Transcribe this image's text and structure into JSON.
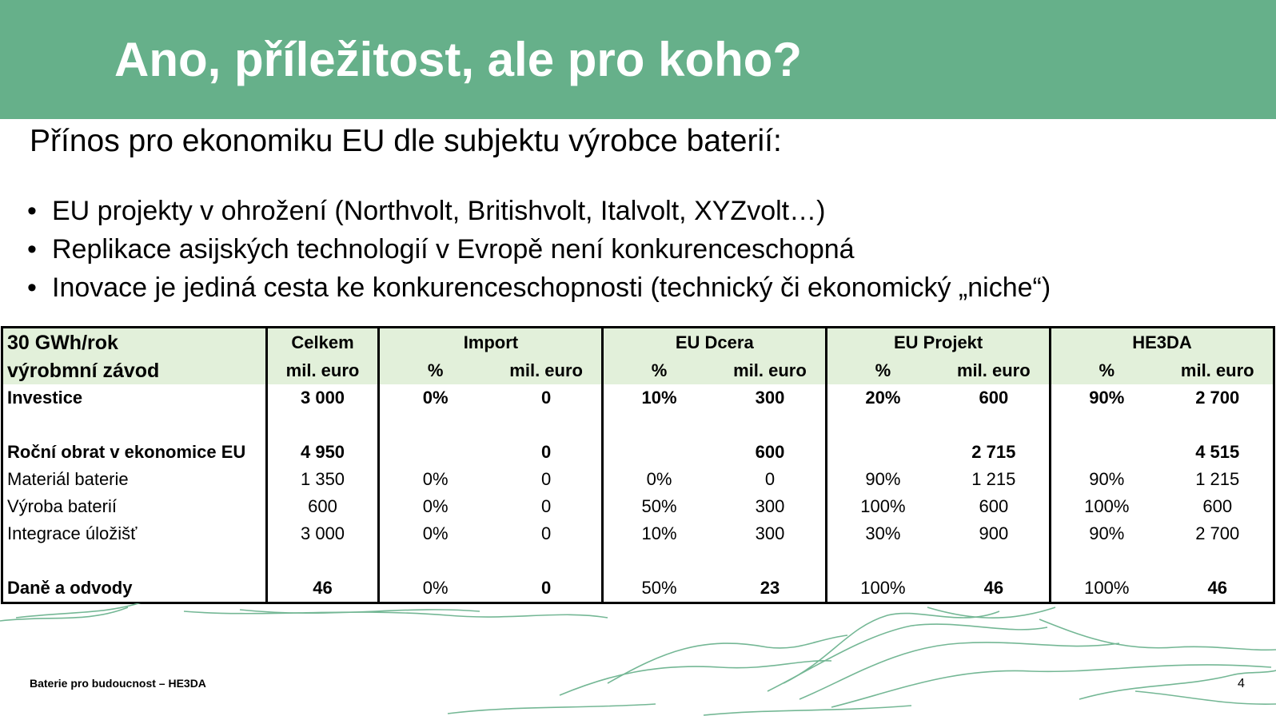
{
  "slide": {
    "title": "Ano, příležitost, ale pro koho?",
    "subtitle": "Přínos pro ekonomiku EU dle subjektu výrobce baterií:",
    "bullets": [
      "EU projekty v ohrožení (Northvolt, Britishvolt, Italvolt, XYZvolt…)",
      "Replikace asijských technologií v Evropě není konkurenceschopná",
      "Inovace je jediná cesta ke konkurenceschopnosti (technický či ekonomický „niche“)"
    ],
    "footer": "Baterie pro budoucnost – HE3DA",
    "page_number": "4",
    "accent_color": "#66b08a",
    "header_fill_color": "#e2f0da"
  },
  "table": {
    "corner_line1": "30 GWh/rok",
    "corner_line2": "výrobmní závod",
    "groups": {
      "celkem": "Celkem",
      "import": "Import",
      "eu_dcera": "EU Dcera",
      "eu_projekt": "EU Projekt",
      "he3da": "HE3DA"
    },
    "subheaders": {
      "pct": "%",
      "unit": "mil. euro"
    },
    "rows": {
      "investice": {
        "label": "Investice",
        "celkem": "3 000",
        "import_pct": "0%",
        "import_val": "0",
        "dcera_pct": "10%",
        "dcera_val": "300",
        "projekt_pct": "20%",
        "projekt_val": "600",
        "he3da_pct": "90%",
        "he3da_val": "2 700"
      },
      "obrat": {
        "label": "Roční obrat v ekonomice EU",
        "celkem": "4 950",
        "import_val": "0",
        "dcera_val": "600",
        "projekt_val": "2 715",
        "he3da_val": "4 515"
      },
      "material": {
        "label": "Materiál baterie",
        "celkem": "1 350",
        "import_pct": "0%",
        "import_val": "0",
        "dcera_pct": "0%",
        "dcera_val": "0",
        "projekt_pct": "90%",
        "projekt_val": "1 215",
        "he3da_pct": "90%",
        "he3da_val": "1 215"
      },
      "vyroba": {
        "label": "Výroba baterií",
        "celkem": "600",
        "import_pct": "0%",
        "import_val": "0",
        "dcera_pct": "50%",
        "dcera_val": "300",
        "projekt_pct": "100%",
        "projekt_val": "600",
        "he3da_pct": "100%",
        "he3da_val": "600"
      },
      "integrace": {
        "label": "Integrace úložišť",
        "celkem": "3 000",
        "import_pct": "0%",
        "import_val": "0",
        "dcera_pct": "10%",
        "dcera_val": "300",
        "projekt_pct": "30%",
        "projekt_val": "900",
        "he3da_pct": "90%",
        "he3da_val": "2 700"
      },
      "dane": {
        "label": "Daně a odvody",
        "celkem": "46",
        "import_pct": "0%",
        "import_val": "0",
        "dcera_pct": "50%",
        "dcera_val": "23",
        "projekt_pct": "100%",
        "projekt_val": "46",
        "he3da_pct": "100%",
        "he3da_val": "46"
      }
    }
  }
}
